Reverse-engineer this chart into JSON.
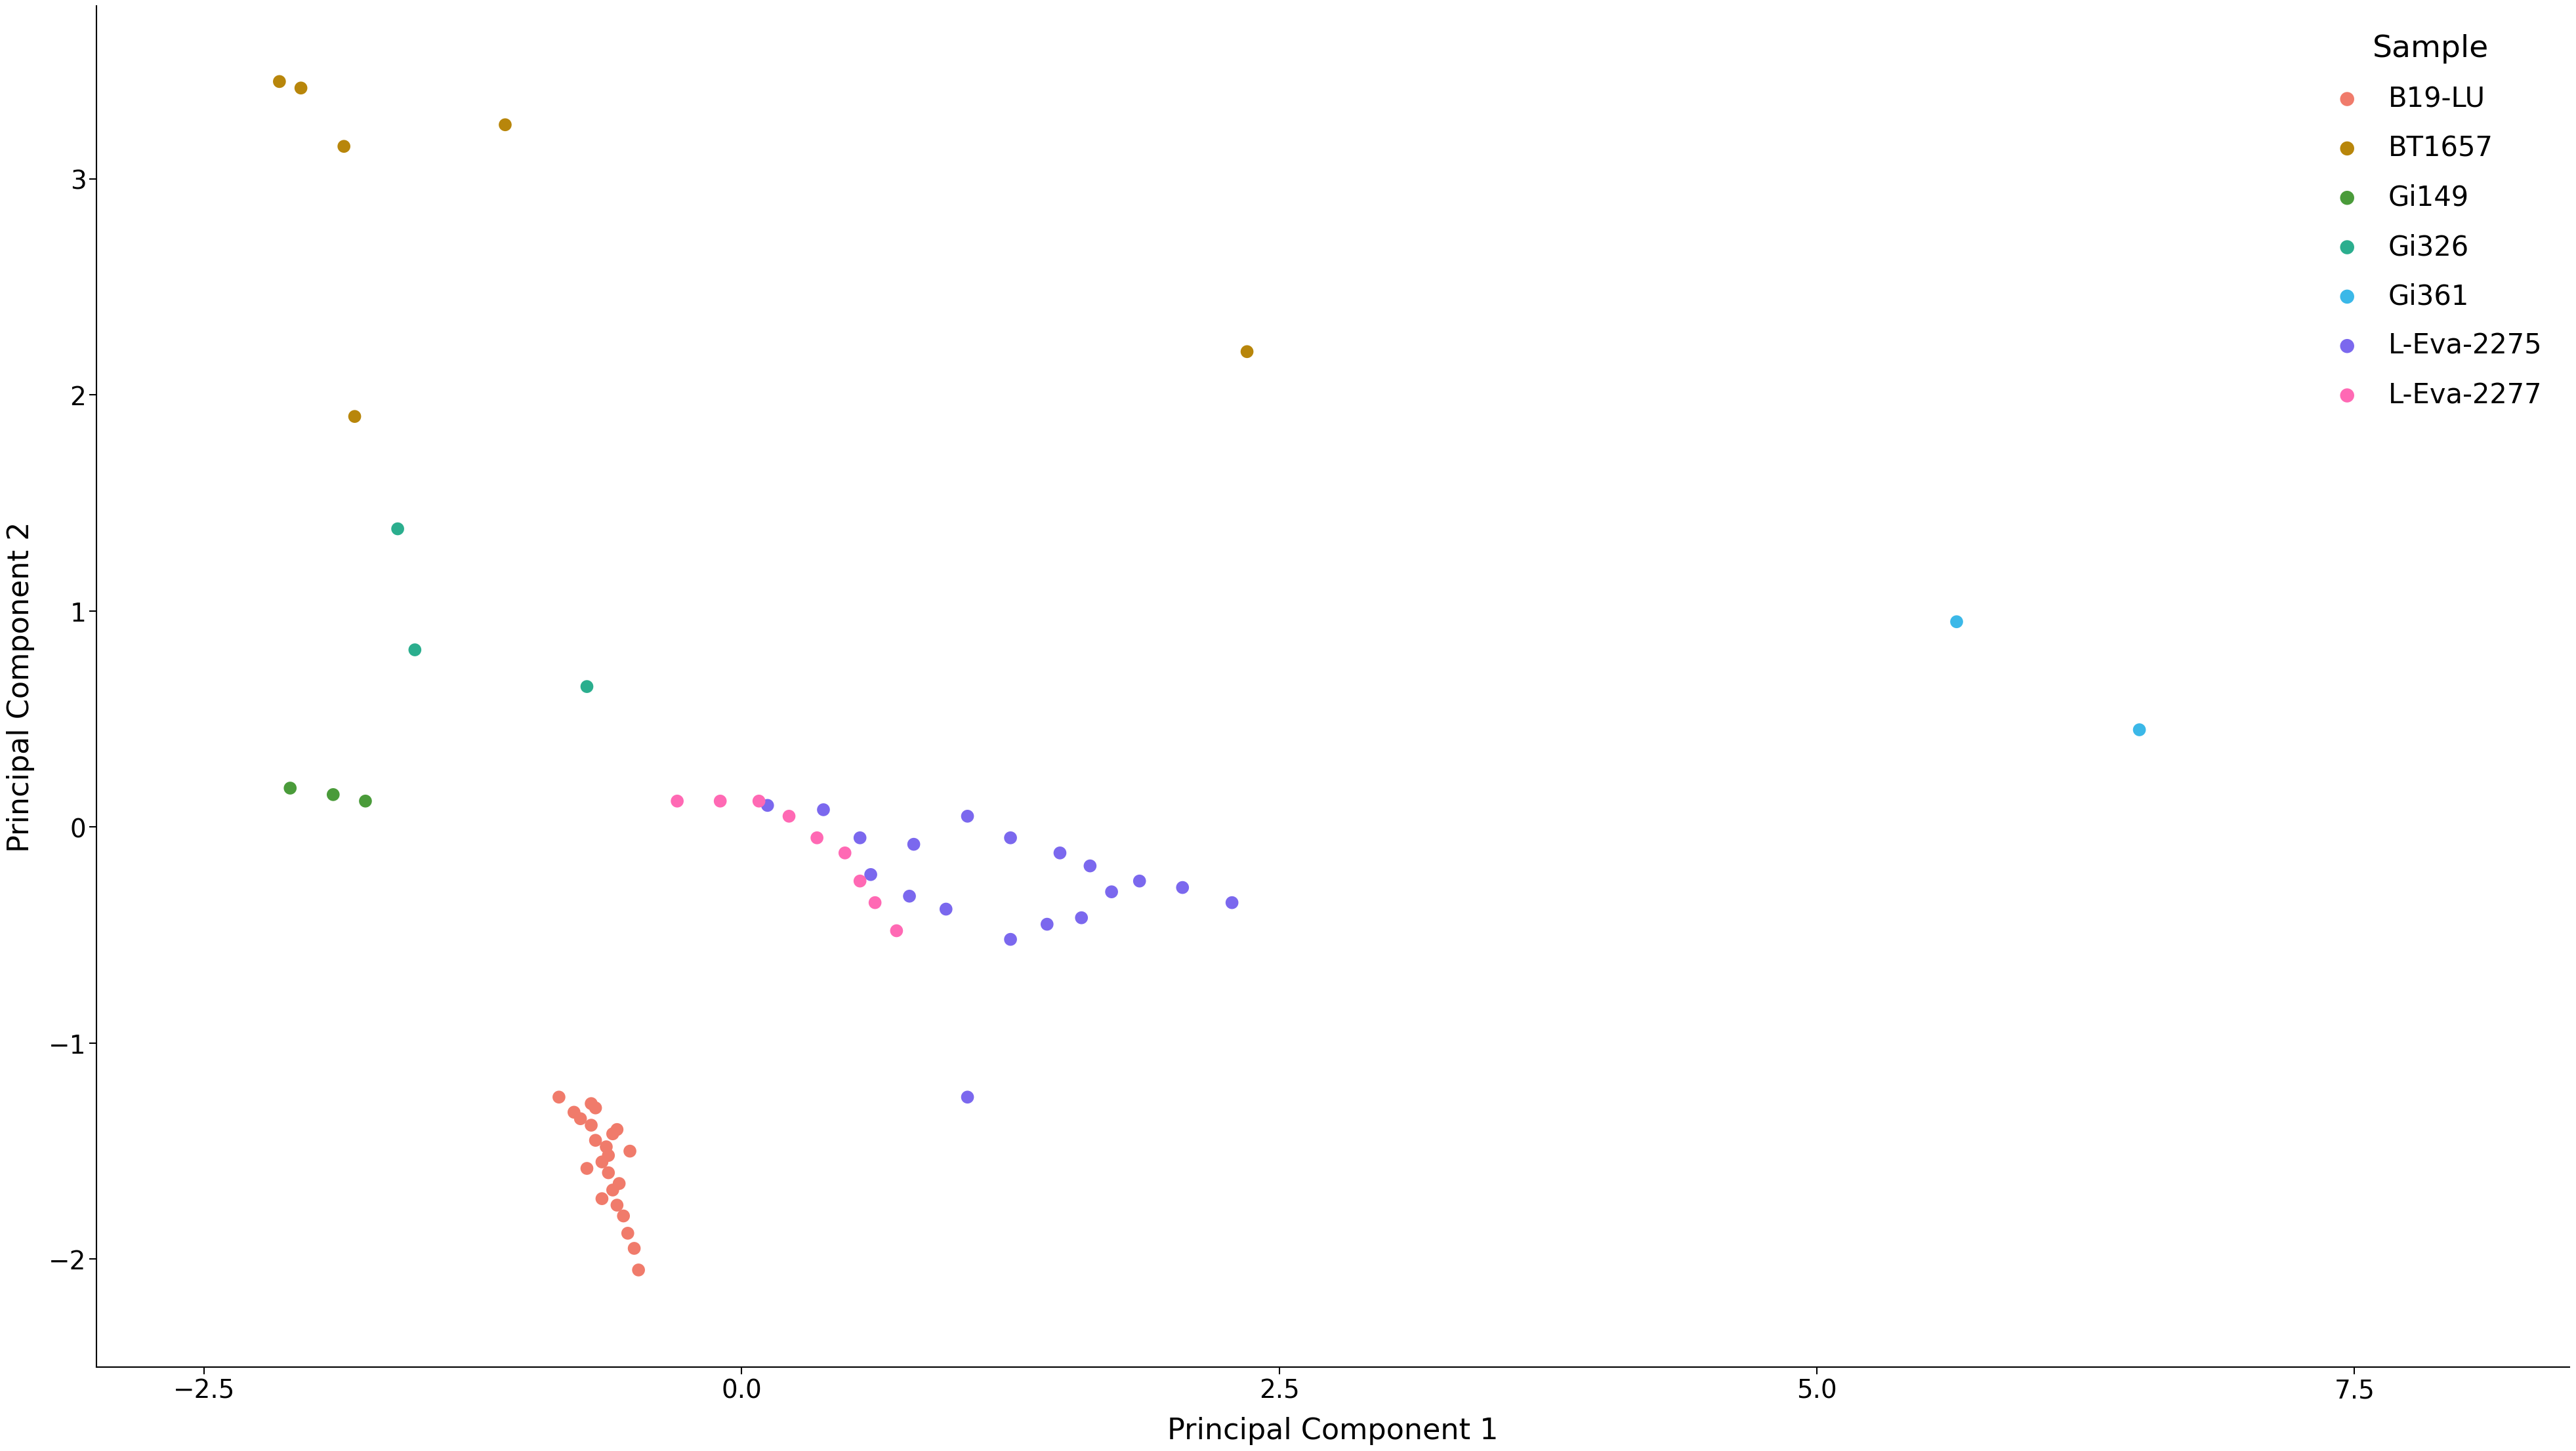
{
  "title": "",
  "xlabel": "Principal Component 1",
  "ylabel": "Principal Component 2",
  "xlim": [
    -3.0,
    8.5
  ],
  "ylim": [
    -2.5,
    3.8
  ],
  "background_color": "#ffffff",
  "samples": {
    "B19-LU": {
      "color": "#F07B6B",
      "hull_color": "#F8C4BC",
      "points": [
        [
          -0.85,
          -1.25
        ],
        [
          -0.75,
          -1.35
        ],
        [
          -0.7,
          -1.28
        ],
        [
          -0.68,
          -1.45
        ],
        [
          -0.65,
          -1.55
        ],
        [
          -0.62,
          -1.6
        ],
        [
          -0.6,
          -1.68
        ],
        [
          -0.58,
          -1.75
        ],
        [
          -0.55,
          -1.8
        ],
        [
          -0.53,
          -1.88
        ],
        [
          -0.5,
          -1.95
        ],
        [
          -0.48,
          -2.05
        ],
        [
          -0.52,
          -1.5
        ],
        [
          -0.6,
          -1.42
        ],
        [
          -0.7,
          -1.38
        ],
        [
          -0.78,
          -1.32
        ],
        [
          -0.62,
          -1.52
        ],
        [
          -0.57,
          -1.65
        ],
        [
          -0.65,
          -1.72
        ],
        [
          -0.72,
          -1.58
        ],
        [
          -0.58,
          -1.4
        ],
        [
          -0.63,
          -1.48
        ],
        [
          -0.68,
          -1.3
        ]
      ]
    },
    "BT1657": {
      "color": "#B8860B",
      "hull_color": "#EDE5B0",
      "points": [
        [
          -2.15,
          3.45
        ],
        [
          -2.05,
          3.42
        ],
        [
          -1.85,
          3.15
        ],
        [
          -1.1,
          3.25
        ],
        [
          -1.8,
          1.9
        ],
        [
          2.35,
          2.2
        ]
      ]
    },
    "Gi149": {
      "color": "#4A9B3A",
      "hull_color": "#C5E8B0",
      "points": [
        [
          -2.1,
          0.18
        ],
        [
          -1.9,
          0.15
        ],
        [
          -1.75,
          0.12
        ]
      ]
    },
    "Gi326": {
      "color": "#2BAE8E",
      "hull_color": "#AEEEE0",
      "points": [
        [
          -1.6,
          1.38
        ],
        [
          -1.52,
          0.82
        ],
        [
          -0.72,
          0.65
        ]
      ]
    },
    "Gi361": {
      "color": "#3BB8E8",
      "hull_color": null,
      "points": [
        [
          5.65,
          0.95
        ],
        [
          6.5,
          0.45
        ]
      ]
    },
    "L-Eva-2275": {
      "color": "#7B68EE",
      "hull_color": "#C8C0F8",
      "points": [
        [
          0.12,
          0.1
        ],
        [
          0.38,
          0.08
        ],
        [
          0.55,
          -0.05
        ],
        [
          0.8,
          -0.08
        ],
        [
          1.05,
          0.05
        ],
        [
          1.25,
          -0.05
        ],
        [
          1.48,
          -0.12
        ],
        [
          1.62,
          -0.18
        ],
        [
          1.72,
          -0.3
        ],
        [
          1.85,
          -0.25
        ],
        [
          2.05,
          -0.28
        ],
        [
          2.28,
          -0.35
        ],
        [
          1.05,
          -1.25
        ],
        [
          1.25,
          -0.52
        ],
        [
          1.42,
          -0.45
        ],
        [
          1.58,
          -0.42
        ],
        [
          0.6,
          -0.22
        ],
        [
          0.78,
          -0.32
        ],
        [
          0.95,
          -0.38
        ]
      ]
    },
    "L-Eva-2277": {
      "color": "#FF69B4",
      "hull_color": "#FFB8D8",
      "points": [
        [
          -0.3,
          0.12
        ],
        [
          -0.1,
          0.12
        ],
        [
          0.08,
          0.12
        ],
        [
          0.22,
          0.05
        ],
        [
          0.35,
          -0.05
        ],
        [
          0.48,
          -0.12
        ],
        [
          0.55,
          -0.25
        ],
        [
          0.62,
          -0.35
        ],
        [
          0.72,
          -0.48
        ]
      ]
    }
  },
  "legend_title": "Sample",
  "legend_order": [
    "B19-LU",
    "BT1657",
    "Gi149",
    "Gi326",
    "Gi361",
    "L-Eva-2275",
    "L-Eva-2277"
  ],
  "xticks": [
    -2.5,
    0.0,
    2.5,
    5.0,
    7.5
  ],
  "yticks": [
    -2,
    -1,
    0,
    1,
    2,
    3
  ],
  "fontsize_labels": 32,
  "fontsize_ticks": 28,
  "fontsize_legend_title": 34,
  "fontsize_legend": 30,
  "marker_size": 200,
  "hull_alpha": 0.45
}
